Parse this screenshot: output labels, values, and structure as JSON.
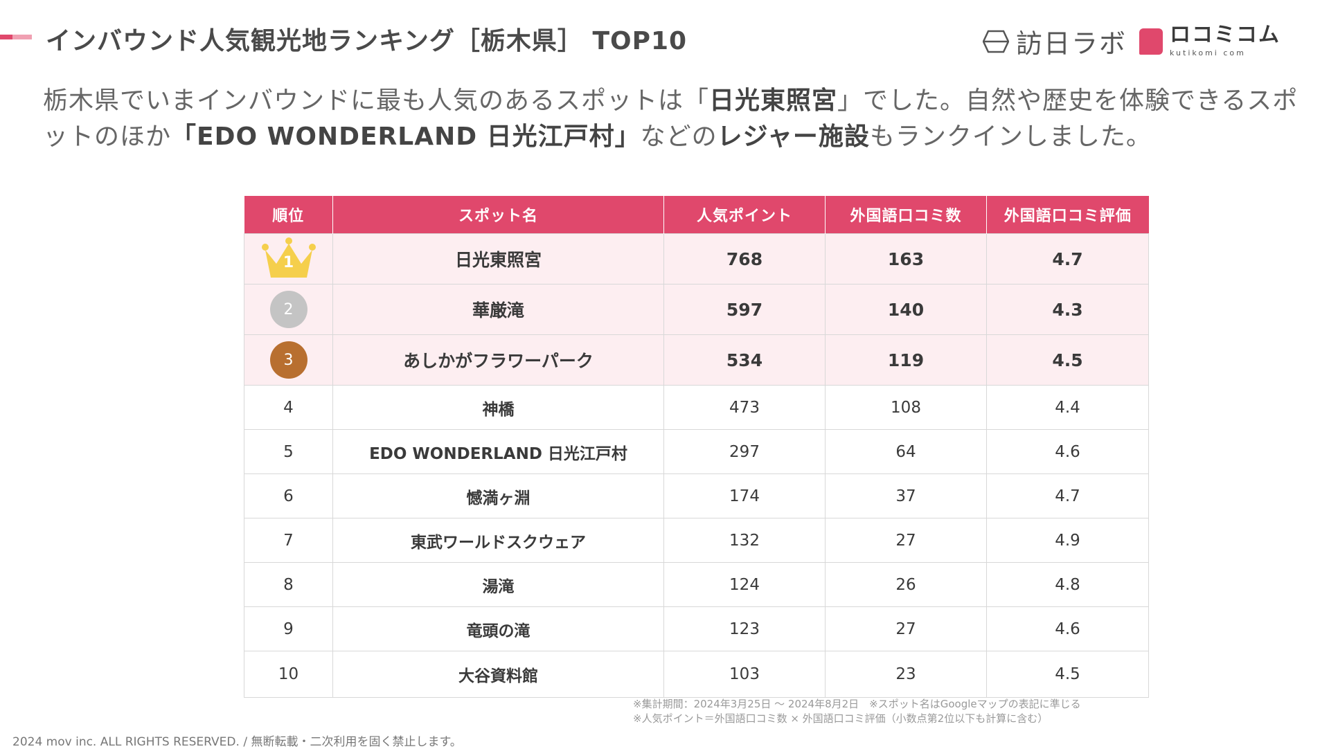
{
  "header": {
    "title": "インバウンド人気観光地ランキング［栃木県］ TOP10",
    "logo_houjin_text": "訪日ラボ",
    "logo_kuchikomi_main": "ロコミコム",
    "logo_kuchikomi_sub": "kutikomi com",
    "accent_colors": [
      "#e0486c",
      "#f0a0b2"
    ]
  },
  "summary": {
    "p1": "栃木県でいまインバウンドに最も人気のあるスポットは「",
    "b1": "日光東照宮",
    "p2": "」でした。自然や歴史を体験できるスポットのほか",
    "b2": "「EDO WONDERLAND 日光江戸村」",
    "p3": "などの",
    "b3": "レジャー施設",
    "p4": "もランクインしました。"
  },
  "table": {
    "headers": [
      "順位",
      "スポット名",
      "人気ポイント",
      "外国語口コミ数",
      "外国語口コミ評価"
    ],
    "header_color": "#e0486c",
    "rows": [
      {
        "rank": "1",
        "name": "日光東照宮",
        "points": "768",
        "reviews": "163",
        "rating": "4.7"
      },
      {
        "rank": "2",
        "name": "華厳滝",
        "points": "597",
        "reviews": "140",
        "rating": "4.3"
      },
      {
        "rank": "3",
        "name": "あしかがフラワーパーク",
        "points": "534",
        "reviews": "119",
        "rating": "4.5"
      },
      {
        "rank": "4",
        "name": "神橋",
        "points": "473",
        "reviews": "108",
        "rating": "4.4"
      },
      {
        "rank": "5",
        "name": "EDO WONDERLAND 日光江戸村",
        "points": "297",
        "reviews": "64",
        "rating": "4.6"
      },
      {
        "rank": "6",
        "name": "憾満ヶ淵",
        "points": "174",
        "reviews": "37",
        "rating": "4.7"
      },
      {
        "rank": "7",
        "name": "東武ワールドスクウェア",
        "points": "132",
        "reviews": "27",
        "rating": "4.9"
      },
      {
        "rank": "8",
        "name": "湯滝",
        "points": "124",
        "reviews": "26",
        "rating": "4.8"
      },
      {
        "rank": "9",
        "name": "竜頭の滝",
        "points": "123",
        "reviews": "27",
        "rating": "4.6"
      },
      {
        "rank": "10",
        "name": "大谷資料館",
        "points": "103",
        "reviews": "23",
        "rating": "4.5"
      }
    ],
    "medal_colors": {
      "gold": "#f5cf4c",
      "silver": "#c4c4c4",
      "bronze": "#b86f30"
    }
  },
  "notes": {
    "line1": "※集計期間：2024年3月25日 〜 2024年8月2日　※スポット名はGoogleマップの表記に準じる",
    "line2": "※人気ポイント＝外国語口コミ数 × 外国語口コミ評価（小数点第2位以下も計算に含む）"
  },
  "footer": {
    "copyright": "2024 mov inc. ALL RIGHTS RESERVED. / 無断転載・二次利用を固く禁止します。"
  }
}
